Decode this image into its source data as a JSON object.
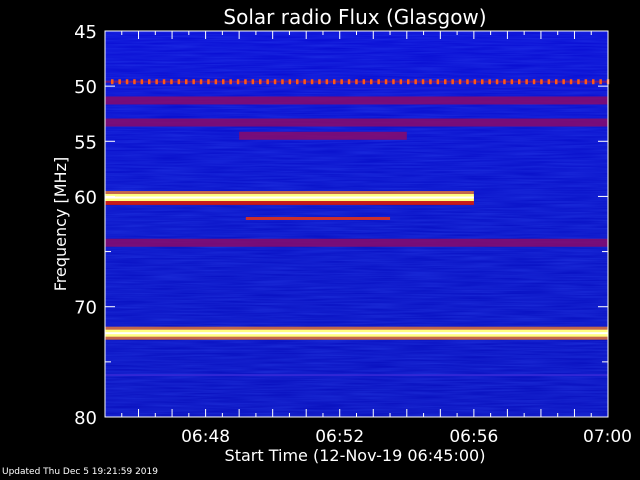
{
  "chart_data": {
    "type": "heatmap",
    "title": "Solar radio Flux (Glasgow)",
    "xlabel": "Start Time (12-Nov-19 06:45:00)",
    "ylabel": "Frequency [MHz]",
    "x_range_minutes": [
      0,
      15
    ],
    "ylim": [
      45,
      80
    ],
    "y_axis_inverted": true,
    "x_ticks": [
      {
        "minute": 3,
        "label": "06:48"
      },
      {
        "minute": 7,
        "label": "06:52"
      },
      {
        "minute": 11,
        "label": "06:56"
      },
      {
        "minute": 15,
        "label": "07:00"
      }
    ],
    "y_ticks": [
      45,
      50,
      55,
      60,
      65,
      70,
      75,
      80
    ],
    "y_tick_labels": [
      "45",
      "50",
      "55",
      "60",
      "70",
      "80"
    ],
    "y_tick_labeled_values": [
      45,
      50,
      55,
      60,
      70,
      80
    ],
    "colormap": [
      "#000040",
      "#0000c8",
      "#2a3cff",
      "#8a0a8a",
      "#d01010",
      "#ff7010",
      "#ffff70",
      "#ffffff"
    ],
    "emission_bands": [
      {
        "freq_mhz": 49.6,
        "start_min": 0,
        "end_min": 15,
        "intensity": "red-dotted"
      },
      {
        "freq_mhz": 51.3,
        "start_min": 0,
        "end_min": 15,
        "intensity": "moderate"
      },
      {
        "freq_mhz": 53.3,
        "start_min": 0,
        "end_min": 15,
        "intensity": "moderate"
      },
      {
        "freq_mhz": 54.5,
        "start_min": 4,
        "end_min": 9,
        "intensity": "moderate"
      },
      {
        "freq_mhz": 60.1,
        "start_min": 0,
        "end_min": 11,
        "intensity": "very-strong"
      },
      {
        "freq_mhz": 60.6,
        "start_min": 0,
        "end_min": 11,
        "intensity": "strong"
      },
      {
        "freq_mhz": 62.0,
        "start_min": 4.2,
        "end_min": 8.5,
        "intensity": "weak-drifting"
      },
      {
        "freq_mhz": 64.2,
        "start_min": 0,
        "end_min": 15,
        "intensity": "moderate"
      },
      {
        "freq_mhz": 72.4,
        "start_min": 0,
        "end_min": 15,
        "intensity": "very-strong"
      },
      {
        "freq_mhz": 76.2,
        "start_min": 0,
        "end_min": 15,
        "intensity": "faint"
      }
    ]
  },
  "footer": {
    "updated": "Updated Thu Dec  5 19:21:59 2019"
  }
}
